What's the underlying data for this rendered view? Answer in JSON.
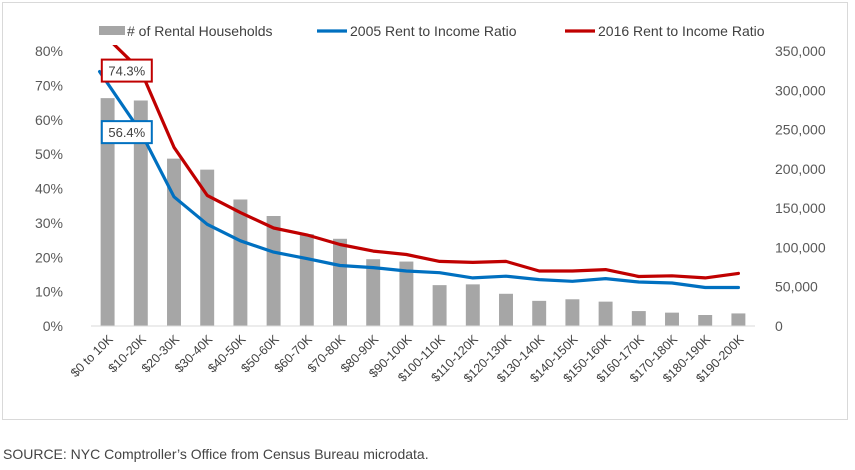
{
  "source": "SOURCE: NYC Comptroller’s Office from Census Bureau microdata.",
  "colors": {
    "bars": "#a6a6a6",
    "line2005": "#0070c0",
    "line2016": "#c00000"
  },
  "chart_data": {
    "type": "bar",
    "title": "",
    "legend_position": "top",
    "categories": [
      "$0 to 10K",
      "$10-20K",
      "$20-30K",
      "$30-40K",
      "$40-50K",
      "$50-60K",
      "$60-70K",
      "$70-80K",
      "$80-90K",
      "$90-100K",
      "$100-110K",
      "$110-120K",
      "$120-130K",
      "$130-140K",
      "$140-150K",
      "$150-160K",
      "$160-170K",
      "$170-180K",
      "$180-190K",
      "$190-200K"
    ],
    "left_axis": {
      "min": 0,
      "max": 0.8,
      "ticks": [
        "0%",
        "10%",
        "20%",
        "30%",
        "40%",
        "50%",
        "60%",
        "70%",
        "80%"
      ]
    },
    "right_axis": {
      "min": 0,
      "max": 350000,
      "ticks": [
        "0",
        "50,000",
        "100,000",
        "150,000",
        "200,000",
        "250,000",
        "300,000",
        "350,000"
      ]
    },
    "series": [
      {
        "name": "# of Rental Households",
        "type": "bar",
        "axis": "right",
        "values": [
          290000,
          287000,
          213000,
          199000,
          161000,
          140000,
          117000,
          111000,
          85000,
          82000,
          52000,
          53000,
          41000,
          32000,
          34000,
          31000,
          19000,
          17000,
          14000,
          16000
        ]
      },
      {
        "name": "2005 Rent to Income Ratio",
        "type": "line",
        "axis": "left",
        "values": [
          0.74,
          0.564,
          0.376,
          0.296,
          0.248,
          0.215,
          0.196,
          0.176,
          0.17,
          0.16,
          0.155,
          0.14,
          0.145,
          0.135,
          0.13,
          0.138,
          0.128,
          0.125,
          0.112,
          0.112
        ]
      },
      {
        "name": "2016 Rent to Income Ratio",
        "type": "line",
        "axis": "left",
        "values": [
          0.86,
          0.743,
          0.52,
          0.38,
          0.33,
          0.285,
          0.265,
          0.237,
          0.218,
          0.208,
          0.188,
          0.185,
          0.188,
          0.16,
          0.16,
          0.164,
          0.144,
          0.146,
          0.14,
          0.153
        ]
      }
    ],
    "callouts": [
      {
        "label": "74.3%",
        "series": 2,
        "index": 1
      },
      {
        "label": "56.4%",
        "series": 1,
        "index": 1
      }
    ]
  }
}
